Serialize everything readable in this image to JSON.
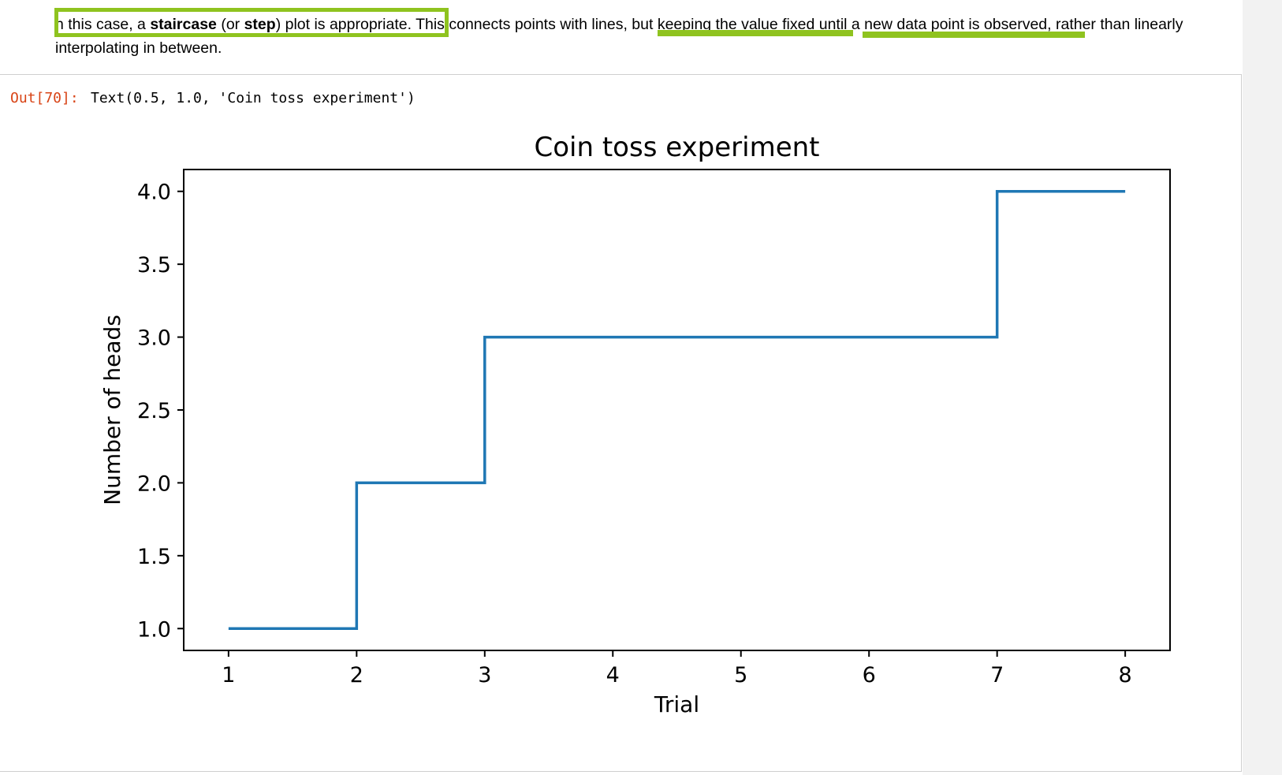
{
  "markdown": {
    "seg1": "n this case, a ",
    "bold1": "staircase",
    "seg2": " (or ",
    "bold2": "step",
    "seg3": ") plot is appropriate. ",
    "seg4": "This connects points with lines, but keeping the value fixed until a new data point is observed, rather than linearly interpolating in between.",
    "highlight_color": "#8fc31f"
  },
  "output": {
    "prompt": "Out[70]:",
    "text": "Text(0.5, 1.0, 'Coin toss experiment')"
  },
  "chart_data": {
    "type": "line",
    "drawstyle": "steps-post",
    "title": "Coin toss experiment",
    "xlabel": "Trial",
    "ylabel": "Number of heads",
    "x": [
      1,
      2,
      3,
      4,
      5,
      6,
      7,
      8
    ],
    "series": [
      {
        "values": [
          1,
          2,
          3,
          3,
          3,
          3,
          4,
          4
        ],
        "color": "#1f77b4"
      }
    ],
    "xlim": [
      0.65,
      8.35
    ],
    "ylim": [
      0.85,
      4.15
    ],
    "xticks": [
      1,
      2,
      3,
      4,
      5,
      6,
      7,
      8
    ],
    "yticks": [
      1.0,
      1.5,
      2.0,
      2.5,
      3.0,
      3.5,
      4.0
    ],
    "grid": false,
    "legend": false
  }
}
